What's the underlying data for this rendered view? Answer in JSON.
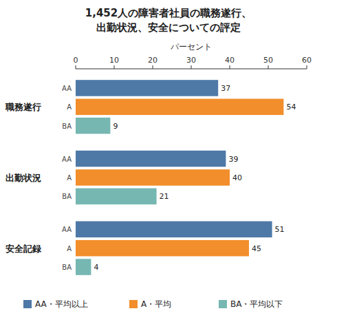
{
  "chart_data": {
    "type": "bar",
    "orientation": "horizontal",
    "title": "1,452人の障害者社員の職務遂行、",
    "subtitle": "出勤状況、安全についての評定",
    "x_label": "パーセント",
    "categories": [
      "職務遂行",
      "出勤状況",
      "安全記録"
    ],
    "series": [
      {
        "name": "AA・平均以上",
        "label": "AA",
        "color": "#4e79a7",
        "values": [
          37,
          39,
          51
        ]
      },
      {
        "name": "A・平均",
        "label": "A",
        "color": "#f28e2b",
        "values": [
          54,
          40,
          45
        ]
      },
      {
        "name": "BA・平均以下",
        "label": "BA",
        "color": "#76b7b2",
        "values": [
          9,
          21,
          4
        ]
      }
    ],
    "xlim": [
      0,
      60
    ],
    "xticks": [
      0,
      10,
      20,
      30,
      40,
      50,
      60
    ],
    "grid": false,
    "legend": "bottom",
    "data_labels": true
  }
}
